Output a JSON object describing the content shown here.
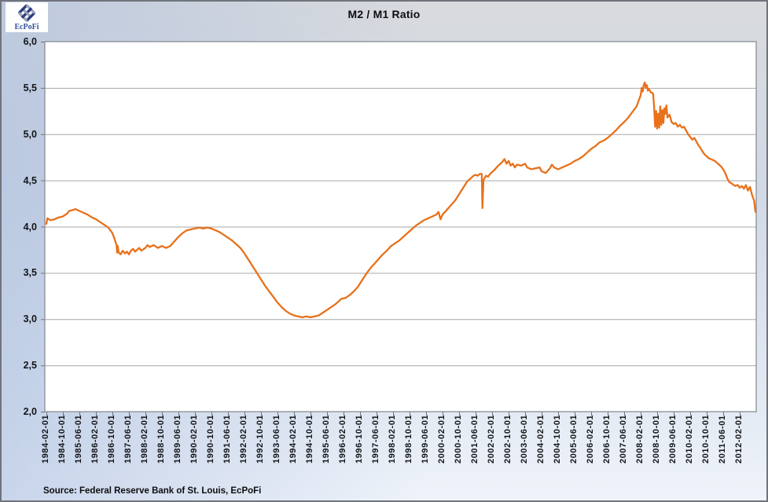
{
  "logo": {
    "text": "EcPoFi"
  },
  "source": {
    "text": "Source: Federal Reserve Bank of St. Louis, EcPoFi"
  },
  "chart_data": {
    "type": "line",
    "title": "M2 / M1 Ratio",
    "series_name": "M2 / M1 ratio",
    "line_color": "#E8711A",
    "grid": "horizontal",
    "legend": "none",
    "ylim": [
      2.0,
      6.0
    ],
    "y_tick_step": 0.5,
    "y_tick_labels": [
      "6,0",
      "5,5",
      "5,0",
      "4,5",
      "4,0",
      "3,5",
      "3,0",
      "2,5",
      "2,0"
    ],
    "x_tick_interval_months": 8,
    "x_tick_labels": [
      "1984-02-01",
      "1984-10-01",
      "1985-06-01",
      "1986-02-01",
      "1986-10-01",
      "1987-06-01",
      "1988-02-01",
      "1988-10-01",
      "1989-06-01",
      "1990-02-01",
      "1990-10-01",
      "1991-06-01",
      "1992-02-01",
      "1992-10-01",
      "1993-06-01",
      "1994-02-01",
      "1994-10-01",
      "1995-06-01",
      "1996-02-01",
      "1996-10-01",
      "1997-06-01",
      "1998-02-01",
      "1998-10-01",
      "1999-06-01",
      "2000-02-01",
      "2000-10-01",
      "2001-06-01",
      "2002-02-01",
      "2002-10-01",
      "2003-06-01",
      "2004-02-01",
      "2004-10-01",
      "2005-06-01",
      "2006-02-01",
      "2006-10-01",
      "2007-06-01",
      "2008-02-01",
      "2008-10-01",
      "2009-06-01",
      "2010-02-01",
      "2010-10-01",
      "2011-06-01",
      "2012-02-01"
    ],
    "x_encoding": "months_since_1984-02-01",
    "points": [
      [
        0,
        4.03
      ],
      [
        0.5,
        4.09
      ],
      [
        2,
        4.07
      ],
      [
        4,
        4.08
      ],
      [
        6,
        4.1
      ],
      [
        8,
        4.11
      ],
      [
        10,
        4.14
      ],
      [
        11,
        4.17
      ],
      [
        13,
        4.18
      ],
      [
        14,
        4.19
      ],
      [
        16,
        4.17
      ],
      [
        18,
        4.15
      ],
      [
        20,
        4.13
      ],
      [
        22,
        4.1
      ],
      [
        24,
        4.08
      ],
      [
        26,
        4.05
      ],
      [
        28,
        4.02
      ],
      [
        30,
        3.99
      ],
      [
        32,
        3.93
      ],
      [
        33,
        3.87
      ],
      [
        34,
        3.8
      ],
      [
        34.3,
        3.72
      ],
      [
        34.6,
        3.79
      ],
      [
        35,
        3.72
      ],
      [
        36,
        3.7
      ],
      [
        37,
        3.74
      ],
      [
        38,
        3.71
      ],
      [
        39,
        3.73
      ],
      [
        40,
        3.7
      ],
      [
        41,
        3.74
      ],
      [
        42,
        3.76
      ],
      [
        43,
        3.73
      ],
      [
        44,
        3.75
      ],
      [
        45,
        3.77
      ],
      [
        46,
        3.74
      ],
      [
        48,
        3.77
      ],
      [
        49,
        3.8
      ],
      [
        50,
        3.78
      ],
      [
        52,
        3.8
      ],
      [
        54,
        3.77
      ],
      [
        56,
        3.79
      ],
      [
        58,
        3.77
      ],
      [
        60,
        3.79
      ],
      [
        62,
        3.84
      ],
      [
        64,
        3.89
      ],
      [
        66,
        3.93
      ],
      [
        68,
        3.96
      ],
      [
        70,
        3.97
      ],
      [
        72,
        3.98
      ],
      [
        74,
        3.99
      ],
      [
        76,
        3.98
      ],
      [
        78,
        3.99
      ],
      [
        80,
        3.98
      ],
      [
        82,
        3.96
      ],
      [
        84,
        3.94
      ],
      [
        86,
        3.91
      ],
      [
        88,
        3.88
      ],
      [
        90,
        3.85
      ],
      [
        92,
        3.81
      ],
      [
        94,
        3.77
      ],
      [
        96,
        3.71
      ],
      [
        98,
        3.64
      ],
      [
        100,
        3.57
      ],
      [
        102,
        3.5
      ],
      [
        104,
        3.43
      ],
      [
        106,
        3.36
      ],
      [
        108,
        3.3
      ],
      [
        110,
        3.24
      ],
      [
        112,
        3.18
      ],
      [
        114,
        3.13
      ],
      [
        116,
        3.09
      ],
      [
        118,
        3.06
      ],
      [
        120,
        3.04
      ],
      [
        122,
        3.03
      ],
      [
        124,
        3.02
      ],
      [
        126,
        3.03
      ],
      [
        128,
        3.02
      ],
      [
        130,
        3.03
      ],
      [
        132,
        3.04
      ],
      [
        134,
        3.07
      ],
      [
        136,
        3.1
      ],
      [
        138,
        3.13
      ],
      [
        140,
        3.16
      ],
      [
        142,
        3.2
      ],
      [
        143,
        3.22
      ],
      [
        145,
        3.23
      ],
      [
        147,
        3.26
      ],
      [
        149,
        3.3
      ],
      [
        151,
        3.35
      ],
      [
        153,
        3.42
      ],
      [
        155,
        3.49
      ],
      [
        157,
        3.55
      ],
      [
        159,
        3.6
      ],
      [
        161,
        3.65
      ],
      [
        163,
        3.7
      ],
      [
        165,
        3.74
      ],
      [
        167,
        3.79
      ],
      [
        169,
        3.82
      ],
      [
        171,
        3.85
      ],
      [
        173,
        3.89
      ],
      [
        175,
        3.93
      ],
      [
        177,
        3.97
      ],
      [
        179,
        4.01
      ],
      [
        181,
        4.04
      ],
      [
        183,
        4.07
      ],
      [
        185,
        4.09
      ],
      [
        187,
        4.11
      ],
      [
        189,
        4.13
      ],
      [
        190,
        4.16
      ],
      [
        191,
        4.08
      ],
      [
        192,
        4.13
      ],
      [
        194,
        4.18
      ],
      [
        196,
        4.23
      ],
      [
        198,
        4.28
      ],
      [
        200,
        4.35
      ],
      [
        202,
        4.42
      ],
      [
        204,
        4.49
      ],
      [
        206,
        4.53
      ],
      [
        207,
        4.55
      ],
      [
        208,
        4.56
      ],
      [
        209,
        4.55
      ],
      [
        210,
        4.57
      ],
      [
        211,
        4.57
      ],
      [
        211.3,
        4.2
      ],
      [
        211.8,
        4.5
      ],
      [
        212.5,
        4.53
      ],
      [
        213,
        4.55
      ],
      [
        214,
        4.54
      ],
      [
        215,
        4.57
      ],
      [
        217,
        4.61
      ],
      [
        219,
        4.66
      ],
      [
        221,
        4.7
      ],
      [
        222,
        4.73
      ],
      [
        223,
        4.68
      ],
      [
        224,
        4.71
      ],
      [
        225,
        4.66
      ],
      [
        226,
        4.68
      ],
      [
        227,
        4.64
      ],
      [
        228,
        4.67
      ],
      [
        230,
        4.66
      ],
      [
        232,
        4.68
      ],
      [
        233,
        4.64
      ],
      [
        235,
        4.62
      ],
      [
        237,
        4.63
      ],
      [
        239,
        4.64
      ],
      [
        240,
        4.6
      ],
      [
        242,
        4.58
      ],
      [
        244,
        4.63
      ],
      [
        245,
        4.67
      ],
      [
        246,
        4.64
      ],
      [
        248,
        4.62
      ],
      [
        250,
        4.64
      ],
      [
        252,
        4.66
      ],
      [
        254,
        4.68
      ],
      [
        256,
        4.71
      ],
      [
        258,
        4.73
      ],
      [
        260,
        4.76
      ],
      [
        262,
        4.8
      ],
      [
        264,
        4.84
      ],
      [
        266,
        4.87
      ],
      [
        268,
        4.91
      ],
      [
        270,
        4.93
      ],
      [
        272,
        4.96
      ],
      [
        274,
        5.0
      ],
      [
        276,
        5.04
      ],
      [
        278,
        5.09
      ],
      [
        280,
        5.13
      ],
      [
        282,
        5.18
      ],
      [
        284,
        5.24
      ],
      [
        286,
        5.3
      ],
      [
        287,
        5.36
      ],
      [
        288,
        5.42
      ],
      [
        288.5,
        5.5
      ],
      [
        289,
        5.46
      ],
      [
        289.5,
        5.53
      ],
      [
        290,
        5.56
      ],
      [
        290.5,
        5.5
      ],
      [
        291,
        5.53
      ],
      [
        291.5,
        5.47
      ],
      [
        292,
        5.49
      ],
      [
        293,
        5.45
      ],
      [
        294,
        5.44
      ],
      [
        294.5,
        5.3
      ],
      [
        295,
        5.08
      ],
      [
        295.5,
        5.25
      ],
      [
        296,
        5.06
      ],
      [
        296.5,
        5.22
      ],
      [
        297,
        5.07
      ],
      [
        297.5,
        5.3
      ],
      [
        298,
        5.1
      ],
      [
        298.5,
        5.26
      ],
      [
        299,
        5.12
      ],
      [
        299.5,
        5.28
      ],
      [
        300,
        5.22
      ],
      [
        300.5,
        5.31
      ],
      [
        301,
        5.18
      ],
      [
        302,
        5.21
      ],
      [
        303,
        5.13
      ],
      [
        304,
        5.11
      ],
      [
        305,
        5.12
      ],
      [
        306,
        5.08
      ],
      [
        307,
        5.1
      ],
      [
        308,
        5.07
      ],
      [
        309,
        5.08
      ],
      [
        310,
        5.04
      ],
      [
        311,
        5.0
      ],
      [
        312,
        4.97
      ],
      [
        313,
        4.94
      ],
      [
        314,
        4.96
      ],
      [
        315,
        4.92
      ],
      [
        316,
        4.88
      ],
      [
        317,
        4.85
      ],
      [
        318,
        4.81
      ],
      [
        319,
        4.78
      ],
      [
        320,
        4.76
      ],
      [
        321,
        4.74
      ],
      [
        322,
        4.73
      ],
      [
        323,
        4.72
      ],
      [
        324,
        4.71
      ],
      [
        325,
        4.69
      ],
      [
        326,
        4.67
      ],
      [
        327,
        4.65
      ],
      [
        328,
        4.62
      ],
      [
        329,
        4.58
      ],
      [
        330,
        4.52
      ],
      [
        331,
        4.48
      ],
      [
        332,
        4.47
      ],
      [
        333,
        4.45
      ],
      [
        334,
        4.44
      ],
      [
        335,
        4.45
      ],
      [
        336,
        4.42
      ],
      [
        337,
        4.44
      ],
      [
        338,
        4.41
      ],
      [
        339,
        4.45
      ],
      [
        340,
        4.39
      ],
      [
        341,
        4.43
      ],
      [
        342,
        4.34
      ],
      [
        343,
        4.28
      ],
      [
        343.6,
        4.16
      ]
    ]
  }
}
